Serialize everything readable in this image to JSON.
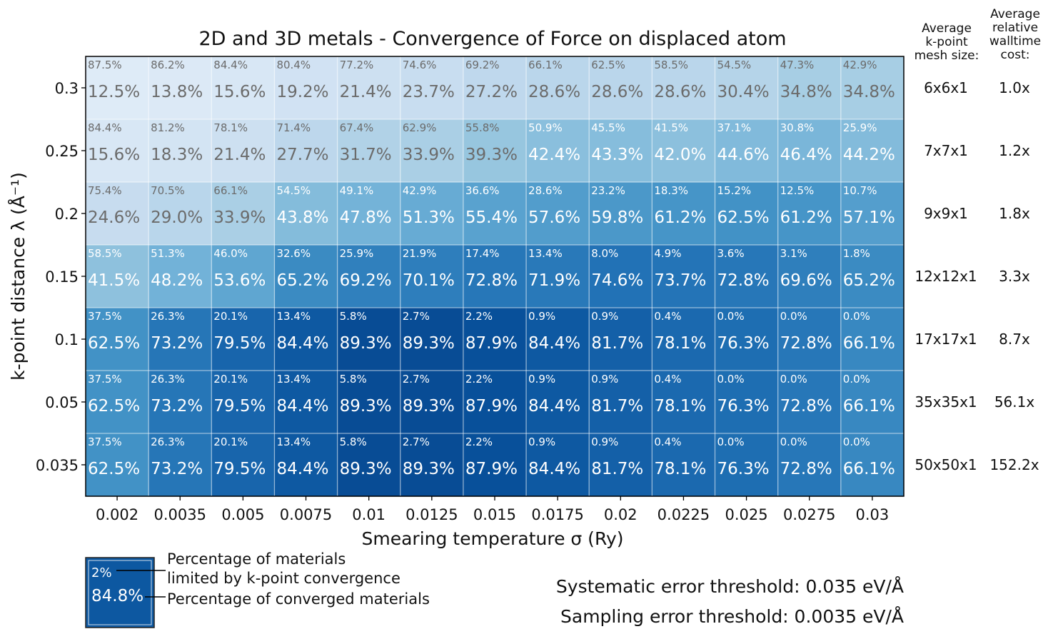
{
  "chart_data": {
    "type": "heatmap",
    "title": "2D and 3D metals - Convergence of Force on displaced atom",
    "xlabel": "Smearing temperature σ (Ry)",
    "ylabel": "k-point distance λ (Å⁻¹)",
    "x": [
      "0.002",
      "0.0035",
      "0.005",
      "0.0075",
      "0.01",
      "0.0125",
      "0.015",
      "0.0175",
      "0.02",
      "0.0225",
      "0.025",
      "0.0275",
      "0.03"
    ],
    "y": [
      "0.3",
      "0.25",
      "0.2",
      "0.15",
      "0.1",
      "0.05",
      "0.035"
    ],
    "converged_pct": [
      [
        12.5,
        13.8,
        15.6,
        19.2,
        21.4,
        23.7,
        27.2,
        28.6,
        28.6,
        28.6,
        30.4,
        34.8,
        34.8
      ],
      [
        15.6,
        18.3,
        21.4,
        27.7,
        31.7,
        33.9,
        39.3,
        42.4,
        43.3,
        42.0,
        44.6,
        46.4,
        44.2
      ],
      [
        24.6,
        29.0,
        33.9,
        43.8,
        47.8,
        51.3,
        55.4,
        57.6,
        59.8,
        61.2,
        62.5,
        61.2,
        57.1
      ],
      [
        41.5,
        48.2,
        53.6,
        65.2,
        69.2,
        70.1,
        72.8,
        71.9,
        74.6,
        73.7,
        72.8,
        69.6,
        65.2
      ],
      [
        62.5,
        73.2,
        79.5,
        84.4,
        89.3,
        89.3,
        87.9,
        84.4,
        81.7,
        78.1,
        76.3,
        72.8,
        66.1
      ],
      [
        62.5,
        73.2,
        79.5,
        84.4,
        89.3,
        89.3,
        87.9,
        84.4,
        81.7,
        78.1,
        76.3,
        72.8,
        66.1
      ],
      [
        62.5,
        73.2,
        79.5,
        84.4,
        89.3,
        89.3,
        87.9,
        84.4,
        81.7,
        78.1,
        76.3,
        72.8,
        66.1
      ]
    ],
    "kpoint_limited_pct": [
      [
        87.5,
        86.2,
        84.4,
        80.4,
        77.2,
        74.6,
        69.2,
        66.1,
        62.5,
        58.5,
        54.5,
        47.3,
        42.9
      ],
      [
        84.4,
        81.2,
        78.1,
        71.4,
        67.4,
        62.9,
        55.8,
        50.9,
        45.5,
        41.5,
        37.1,
        30.8,
        25.9
      ],
      [
        75.4,
        70.5,
        66.1,
        54.5,
        49.1,
        42.9,
        36.6,
        28.6,
        23.2,
        18.3,
        15.2,
        12.5,
        10.7
      ],
      [
        58.5,
        51.3,
        46.0,
        32.6,
        25.9,
        21.9,
        17.4,
        13.4,
        8.0,
        4.9,
        3.6,
        3.1,
        1.8
      ],
      [
        37.5,
        26.3,
        20.1,
        13.4,
        5.8,
        2.7,
        2.2,
        0.9,
        0.9,
        0.4,
        0.0,
        0.0,
        0.0
      ],
      [
        37.5,
        26.3,
        20.1,
        13.4,
        5.8,
        2.7,
        2.2,
        0.9,
        0.9,
        0.4,
        0.0,
        0.0,
        0.0
      ],
      [
        37.5,
        26.3,
        20.1,
        13.4,
        5.8,
        2.7,
        2.2,
        0.9,
        0.9,
        0.4,
        0.0,
        0.0,
        0.0
      ]
    ],
    "vlim": [
      0,
      100
    ],
    "colormap": "Blues",
    "grid": true,
    "side_table": {
      "mesh_header": [
        "Average",
        "k-point",
        "mesh size:"
      ],
      "cost_header": [
        "Average",
        "relative",
        "walltime",
        "cost:"
      ],
      "mesh": [
        "6x6x1",
        "7x7x1",
        "9x9x1",
        "12x12x1",
        "17x17x1",
        "35x35x1",
        "50x50x1"
      ],
      "cost": [
        "1.0x",
        "1.2x",
        "1.8x",
        "3.3x",
        "8.7x",
        "56.1x",
        "152.2x"
      ]
    },
    "legend": {
      "sample_small": "2%",
      "sample_big": "84.8%",
      "sample_value": 84.8,
      "desc_small_line1": "Percentage of materials",
      "desc_small_line2": "limited by k-point convergence",
      "desc_big": "Percentage of converged materials"
    },
    "annotations": [
      "Systematic error threshold: 0.035 eV/Å",
      "Sampling error threshold: 0.0035 eV/Å"
    ]
  }
}
